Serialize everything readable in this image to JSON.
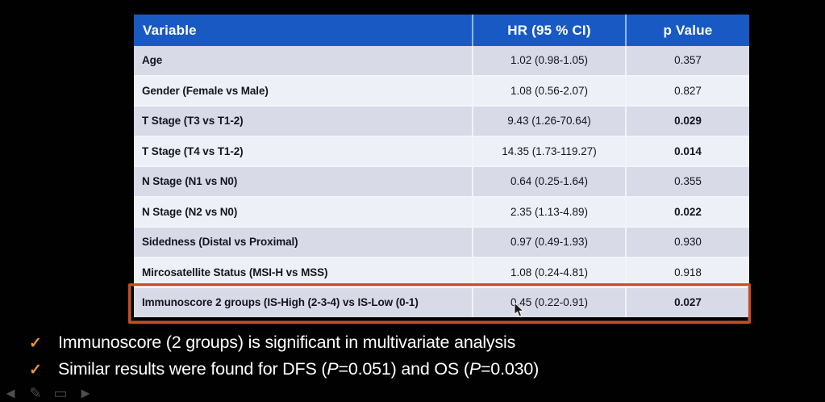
{
  "table": {
    "columns": [
      "Variable",
      "HR (95 % CI)",
      "p Value"
    ],
    "rows": [
      {
        "variable": "Age",
        "hr": "1.02 (0.98-1.05)",
        "p": "0.357",
        "significant": false,
        "highlighted": false
      },
      {
        "variable": "Gender (Female vs Male)",
        "hr": "1.08 (0.56-2.07)",
        "p": "0.827",
        "significant": false,
        "highlighted": false
      },
      {
        "variable": "T Stage (T3 vs T1-2)",
        "hr": "9.43 (1.26-70.64)",
        "p": "0.029",
        "significant": true,
        "highlighted": false
      },
      {
        "variable": "T Stage (T4 vs T1-2)",
        "hr": "14.35 (1.73-119.27)",
        "p": "0.014",
        "significant": true,
        "highlighted": false
      },
      {
        "variable": "N Stage (N1 vs N0)",
        "hr": "0.64 (0.25-1.64)",
        "p": "0.355",
        "significant": false,
        "highlighted": false
      },
      {
        "variable": "N Stage (N2 vs N0)",
        "hr": "2.35 (1.13-4.89)",
        "p": "0.022",
        "significant": true,
        "highlighted": false
      },
      {
        "variable": "Sidedness (Distal vs Proximal)",
        "hr": "0.97 (0.49-1.93)",
        "p": "0.930",
        "significant": false,
        "highlighted": false
      },
      {
        "variable": "Mircosatellite Status (MSI-H vs MSS)",
        "hr": "1.08 (0.24-4.81)",
        "p": "0.918",
        "significant": false,
        "highlighted": false
      },
      {
        "variable": "Immunoscore 2 groups (IS-High (2-3-4) vs IS-Low (0-1)",
        "hr": "0.45 (0.22-0.91)",
        "p": "0.027",
        "significant": true,
        "highlighted": true
      }
    ]
  },
  "bullets": [
    {
      "check": "✓",
      "segments": [
        {
          "text": "Immunoscore (2 groups) is significant in multivariate analysis",
          "italic": false
        }
      ]
    },
    {
      "check": "✓",
      "segments": [
        {
          "text": "Similar results were found for DFS (",
          "italic": false
        },
        {
          "text": "P",
          "italic": true
        },
        {
          "text": "=0.051) and OS (",
          "italic": false
        },
        {
          "text": "P",
          "italic": true
        },
        {
          "text": "=0.030)",
          "italic": false
        }
      ]
    }
  ],
  "toolbar": {
    "icons": [
      "previous-slide-arrow-icon",
      "pen-icon",
      "slide-thumbnail-icon",
      "next-slide-arrow-icon"
    ]
  },
  "colors": {
    "background": "#010101",
    "header_bg": "#1959c4",
    "header_divider": "#8fb9ea",
    "row_odd_bg": "#d8dae7",
    "row_even_bg": "#eef0f7",
    "row_divider": "#f3f4f9",
    "table_text": "#15151f",
    "highlight_border": "#c94b27",
    "checkmark": "#e8963f",
    "bullet_text": "#ffffff"
  }
}
